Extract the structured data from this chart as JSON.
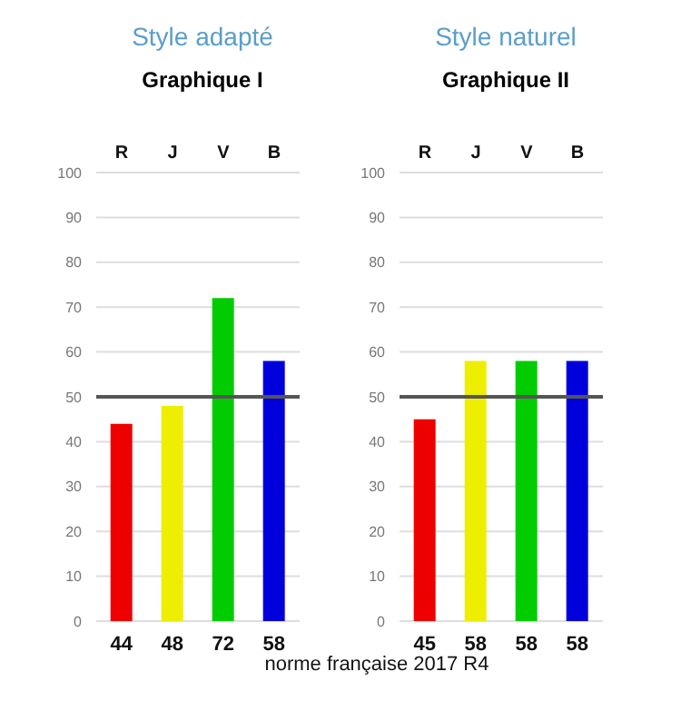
{
  "chart_data": [
    {
      "type": "bar",
      "title": "Style adapté",
      "subtitle": "Graphique I",
      "categories": [
        "R",
        "J",
        "V",
        "B"
      ],
      "values": [
        44,
        48,
        72,
        58
      ],
      "colors": [
        "#ee0000",
        "#eeee00",
        "#00cc00",
        "#0000dd"
      ],
      "ylim": [
        0,
        100
      ],
      "yticks": [
        0,
        10,
        20,
        30,
        40,
        50,
        60,
        70,
        80,
        90,
        100
      ],
      "grid": "y",
      "data_labels": true,
      "ref_lines": [
        {
          "axis": "y",
          "value": 50,
          "color": "#555555"
        }
      ]
    },
    {
      "type": "bar",
      "title": "Style naturel",
      "subtitle": "Graphique II",
      "categories": [
        "R",
        "J",
        "V",
        "B"
      ],
      "values": [
        45,
        58,
        58,
        58
      ],
      "colors": [
        "#ee0000",
        "#eeee00",
        "#00cc00",
        "#0000dd"
      ],
      "ylim": [
        0,
        100
      ],
      "yticks": [
        0,
        10,
        20,
        30,
        40,
        50,
        60,
        70,
        80,
        90,
        100
      ],
      "grid": "y",
      "data_labels": true,
      "ref_lines": [
        {
          "axis": "y",
          "value": 50,
          "color": "#555555"
        }
      ],
      "annotations": [
        "norme française 2017 R4"
      ]
    }
  ]
}
